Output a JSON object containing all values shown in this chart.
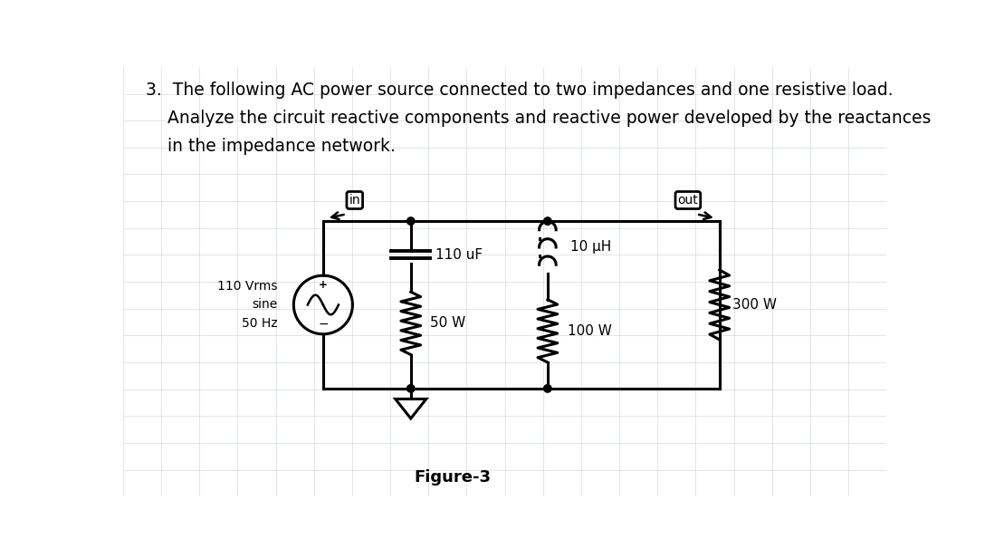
{
  "title_line1": "3.  The following AC power source connected to two impedances and one resistive load.",
  "title_line2": "    Analyze the circuit reactive components and reactive power developed by the reactances",
  "title_line3": "    in the impedance network.",
  "figure_label": "Figure-3",
  "bg_color": "#ffffff",
  "grid_color": "#d0dce8",
  "text_color": "#000000",
  "source_label": "110 Vrms\nsine\n50 Hz",
  "cap_label": "110 uF",
  "ind_label": "10 μH",
  "r1_label": "50 W",
  "r2_label": "100 W",
  "r3_label": "300 W",
  "in_label": "in",
  "out_label": "out",
  "title_fontsize": 13.5,
  "label_fontsize": 11,
  "lw": 2.2
}
